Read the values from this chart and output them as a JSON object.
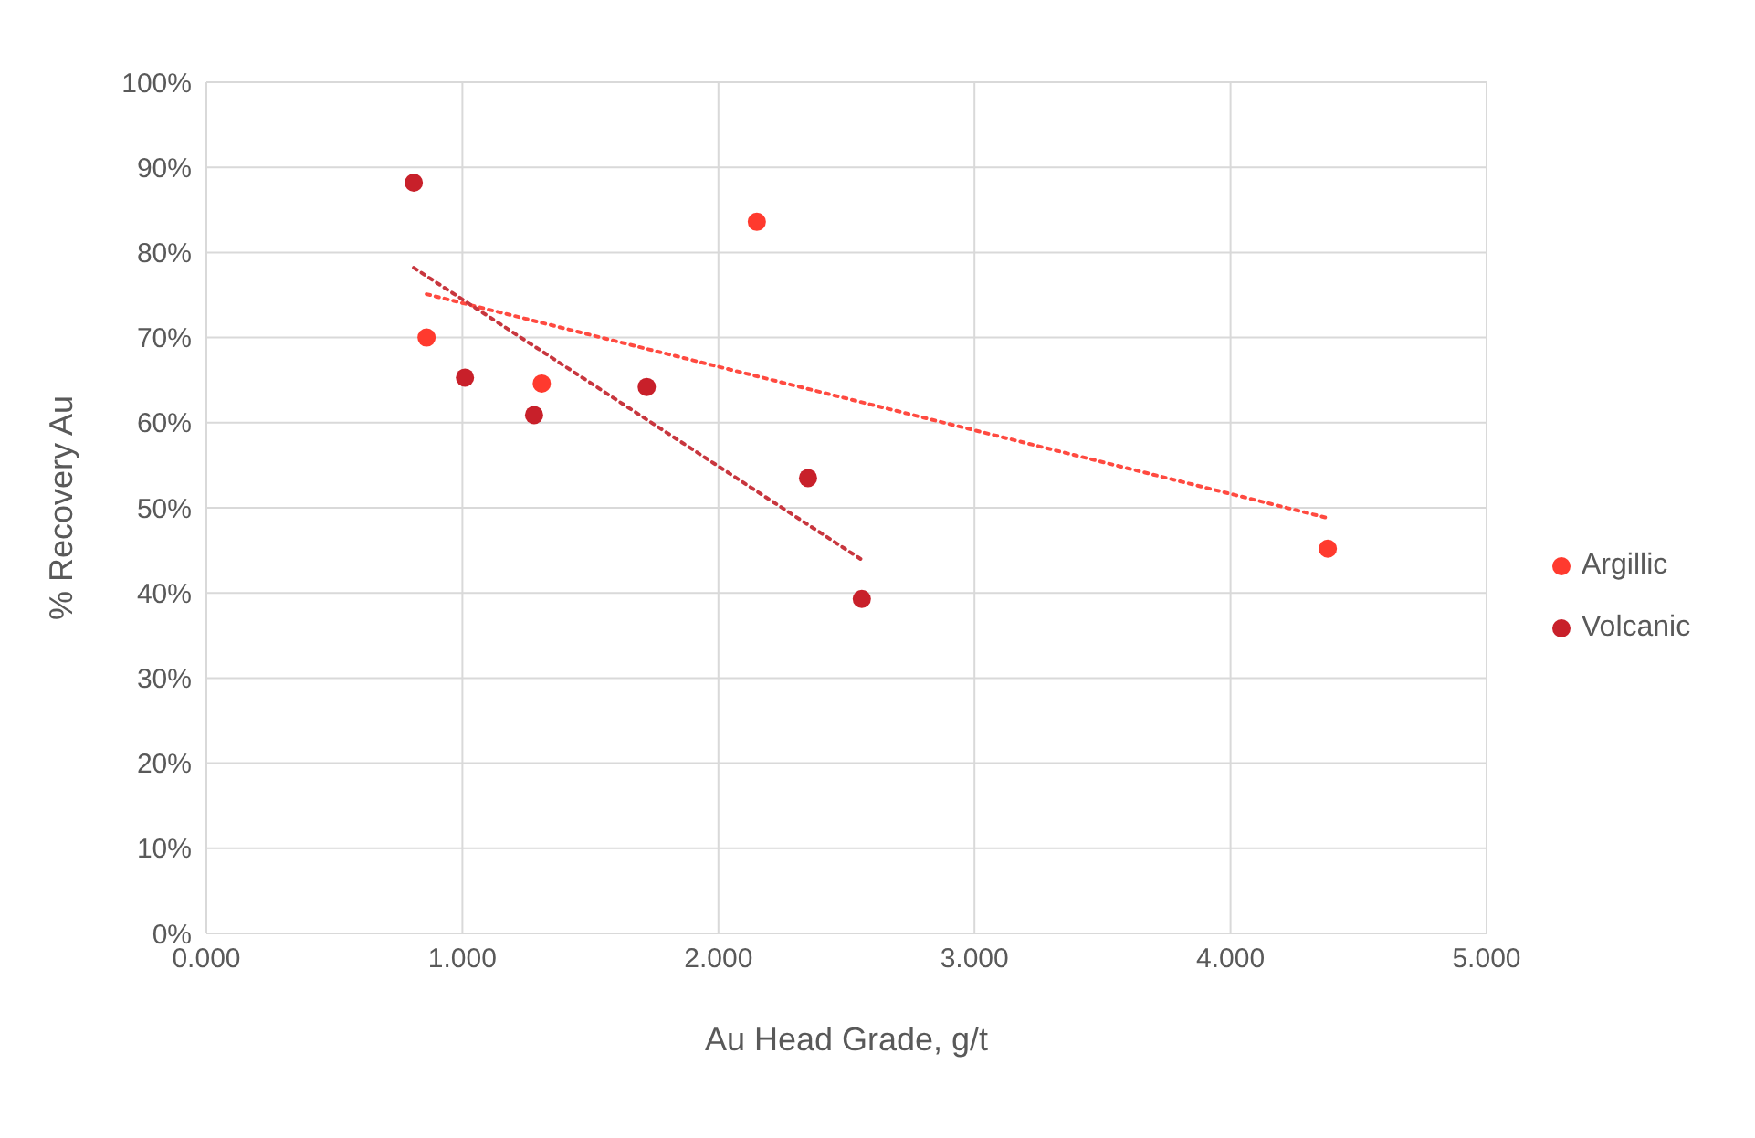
{
  "chart_data": {
    "type": "scatter",
    "xlabel": "Au Head Grade, g/t",
    "ylabel": "% Recovery  Au",
    "xlim": [
      0,
      5
    ],
    "xticks": [
      {
        "value": 0,
        "label": "0.000"
      },
      {
        "value": 1,
        "label": "1.000"
      },
      {
        "value": 2,
        "label": "2.000"
      },
      {
        "value": 3,
        "label": "3.000"
      },
      {
        "value": 4,
        "label": "4.000"
      },
      {
        "value": 5,
        "label": "5.000"
      }
    ],
    "ylim": [
      0,
      100
    ],
    "yticks": [
      {
        "value": 0,
        "label": "0%"
      },
      {
        "value": 10,
        "label": "10%"
      },
      {
        "value": 20,
        "label": "20%"
      },
      {
        "value": 30,
        "label": "30%"
      },
      {
        "value": 40,
        "label": "40%"
      },
      {
        "value": 50,
        "label": "50%"
      },
      {
        "value": 60,
        "label": "60%"
      },
      {
        "value": 70,
        "label": "70%"
      },
      {
        "value": 80,
        "label": "80%"
      },
      {
        "value": 90,
        "label": "90%"
      },
      {
        "value": 100,
        "label": "100%"
      }
    ],
    "grid": true,
    "legend": "right",
    "marker": "circle",
    "series": [
      {
        "name": "Argillic",
        "color": "#ff3a2e",
        "x": [
          0.86,
          1.31,
          2.15,
          4.38
        ],
        "values": [
          70,
          64.6,
          83.6,
          45.2
        ]
      },
      {
        "name": "Volcanic",
        "color": "#c8202a",
        "x": [
          0.81,
          1.01,
          1.28,
          1.72,
          2.35,
          2.56
        ],
        "values": [
          88.2,
          65.3,
          60.9,
          64.2,
          53.5,
          39.3
        ]
      },
      {
        "type": "line",
        "color": "#ff4a40",
        "line_style": "dotted",
        "marker": "none",
        "x": [
          0.86,
          4.38
        ],
        "values": [
          75.1,
          48.8
        ]
      },
      {
        "type": "line",
        "color": "#c8363e",
        "line_style": "dotted",
        "marker": "none",
        "x": [
          0.81,
          2.56
        ],
        "values": [
          78.2,
          43.9
        ]
      }
    ]
  }
}
